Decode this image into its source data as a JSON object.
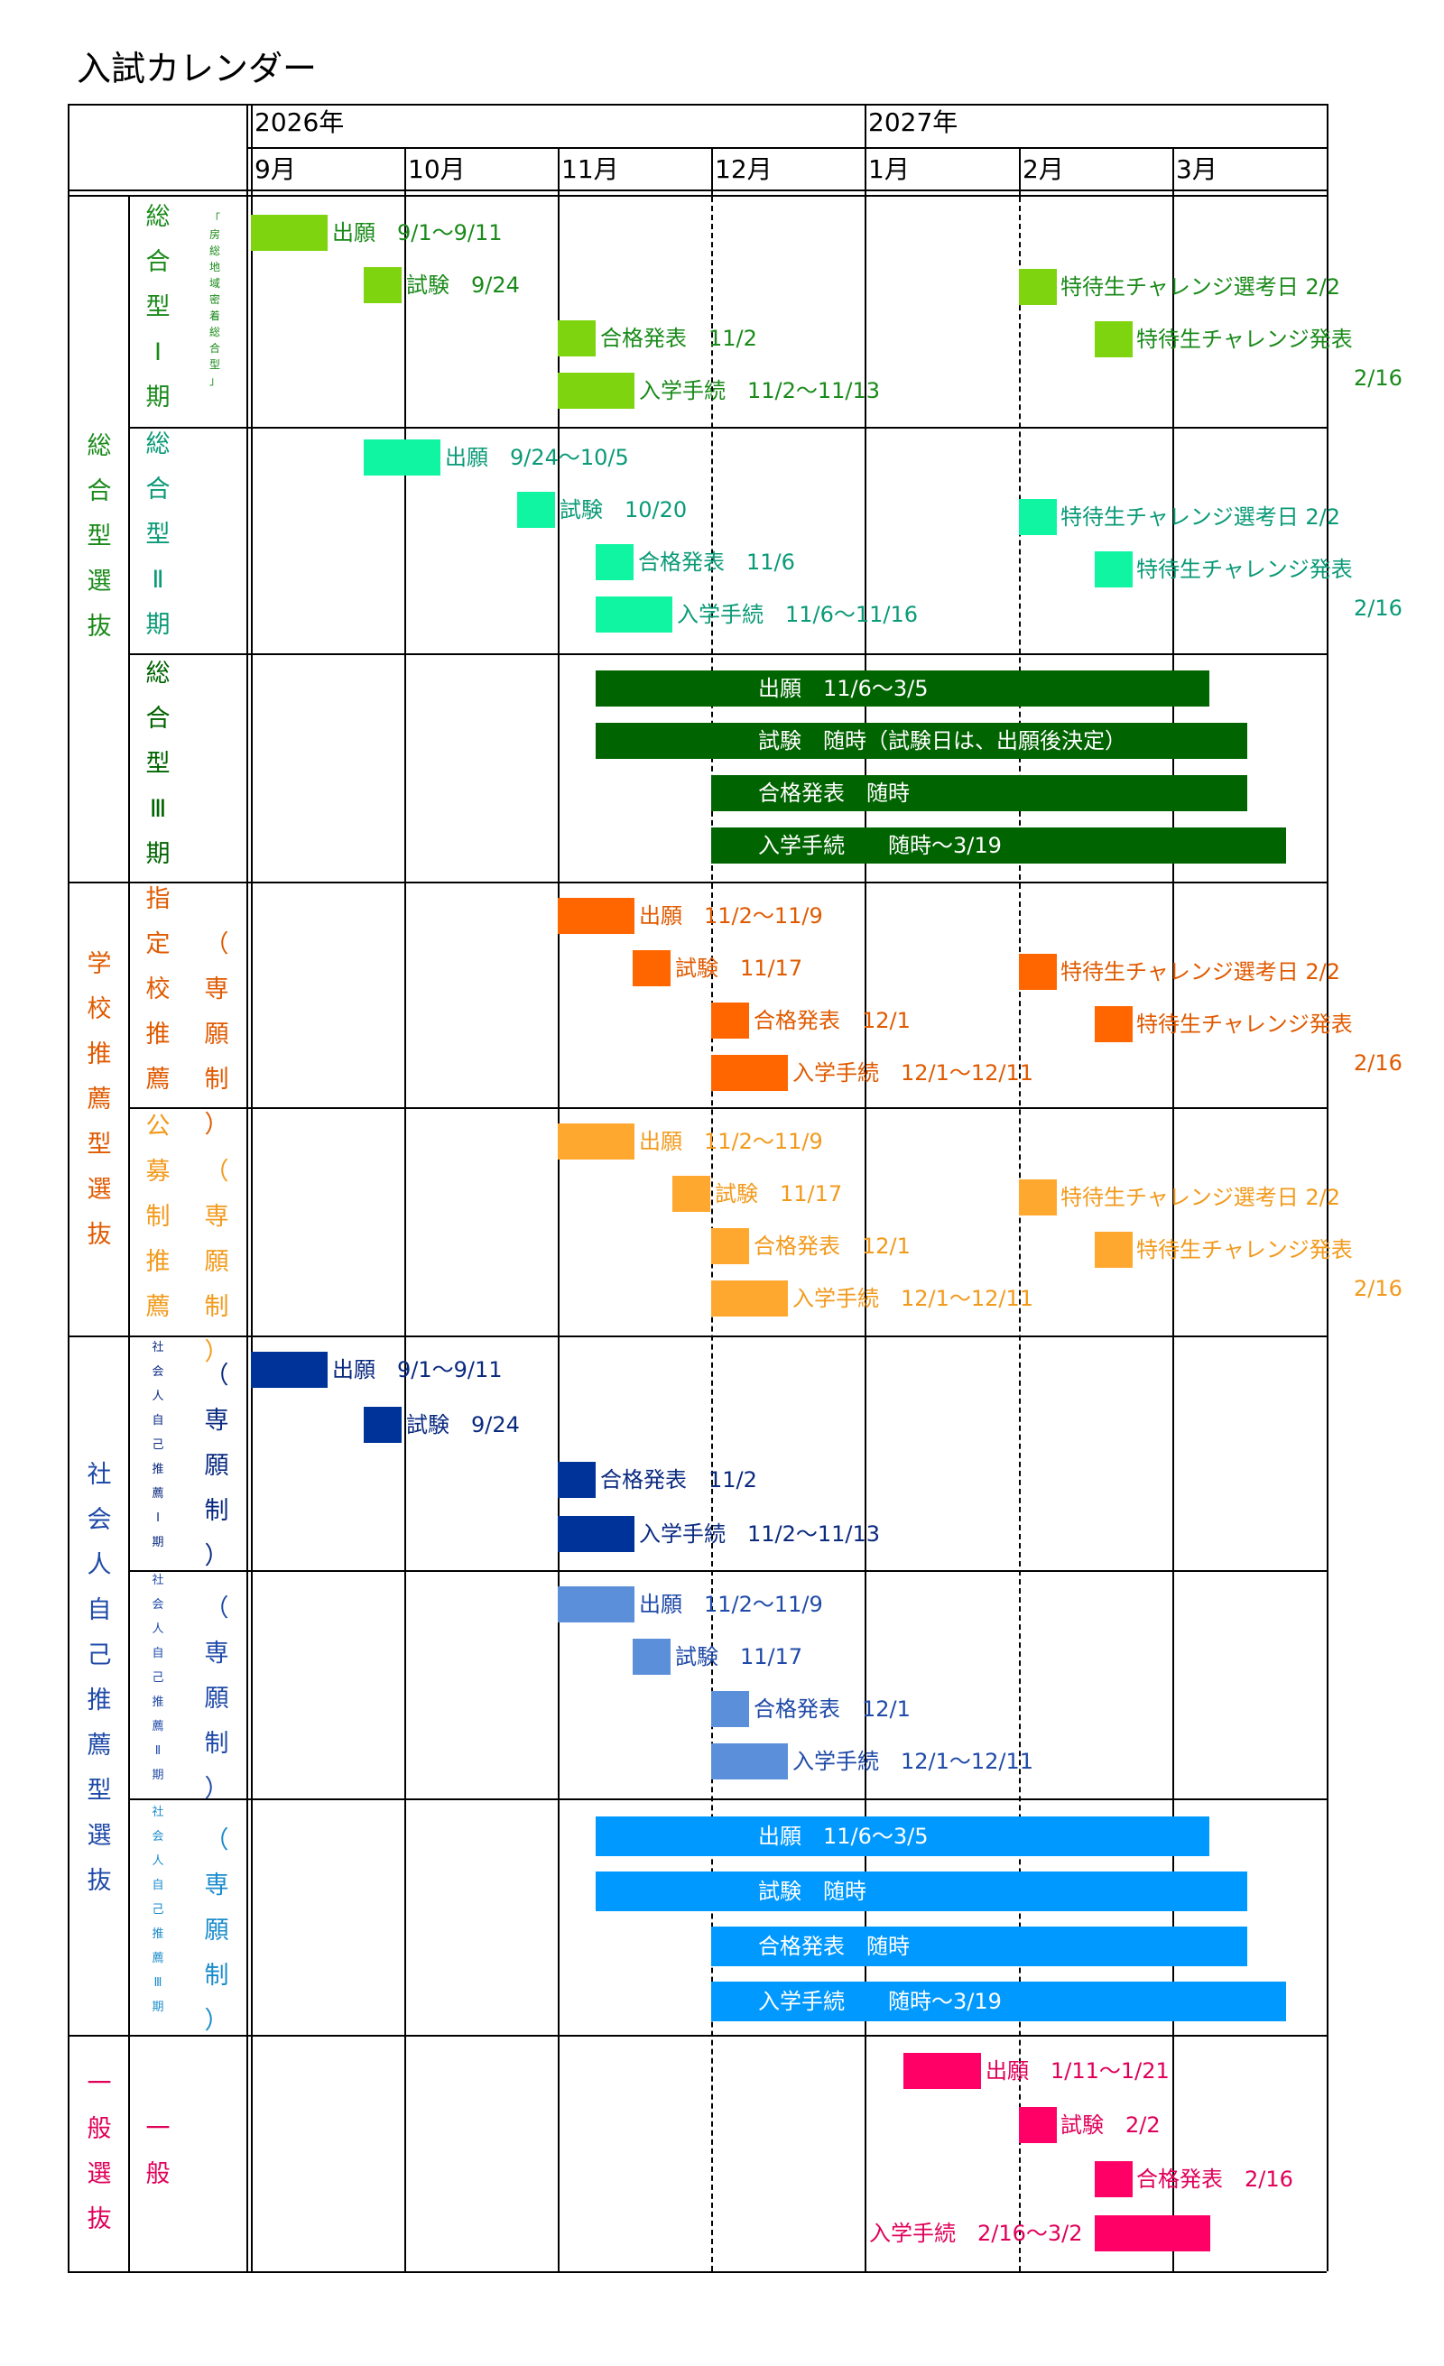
{
  "title": "入試カレンダー",
  "header": {
    "years": [
      "2026年",
      "2027年"
    ],
    "months": [
      "9月",
      "10月",
      "11月",
      "12月",
      "1月",
      "2月",
      "3月"
    ]
  },
  "colors": {
    "sogo1": "#7ed40e",
    "sogo2": "#10f5a2",
    "sogo3": "#006400",
    "shitei": "#ff6600",
    "kobo": "#ffa830",
    "shakai1": "#003399",
    "shakai2": "#5b8fd9",
    "shakai3": "#0099ff",
    "ippan": "#ff0066",
    "label_sogo1": "#1a8a1a",
    "label_sogo2": "#0a9a77",
    "label_sogo3": "#006400",
    "label_shitei": "#e05a00",
    "label_kobo": "#f29a1c",
    "label_shakai1": "#0a2a80",
    "label_shakai2": "#1f4aa8",
    "label_shakai3": "#1a8ccc",
    "label_ippan": "#e0005a"
  },
  "categories": {
    "sogo": "総合型選抜",
    "gakko": "学校推薦型選抜",
    "shakai": "社会人自己推薦型選抜",
    "ippan": "一般選抜"
  },
  "rows": {
    "sogo1": {
      "name": "総合型Ⅰ期",
      "note": "「房総地域密着総合型」"
    },
    "sogo2": {
      "name": "総合型Ⅱ期"
    },
    "sogo3": {
      "name": "総合型Ⅲ期"
    },
    "shitei": {
      "name": "指定校推薦",
      "note": "（専願制）"
    },
    "kobo": {
      "name": "公募制推薦",
      "note": "（専願制）"
    },
    "shakai1": {
      "name": "社会人自己推薦Ⅰ期",
      "note": "（専願制）"
    },
    "shakai2": {
      "name": "社会人自己推薦Ⅱ期",
      "note": "（専願制）"
    },
    "shakai3": {
      "name": "社会人自己推薦Ⅲ期",
      "note": "（専願制）"
    },
    "ippan": {
      "name": "一般"
    }
  },
  "events": {
    "sogo1": [
      "出願　9/1～9/11",
      "試験　9/24",
      "合格発表　11/2",
      "入学手続　11/2～11/13",
      "特待生チャレンジ選考日 2/2",
      "特待生チャレンジ発表",
      "2/16"
    ],
    "sogo2": [
      "出願　9/24～10/5",
      "試験　10/20",
      "合格発表　11/6",
      "入学手続　11/6～11/16",
      "特待生チャレンジ選考日 2/2",
      "特待生チャレンジ発表",
      "2/16"
    ],
    "sogo3": [
      "出願　11/6～3/5",
      "試験　随時（試験日は、出願後決定）",
      "合格発表　随時",
      "入学手続　　随時～3/19"
    ],
    "shitei": [
      "出願　11/2～11/9",
      "試験　11/17",
      "合格発表　12/1",
      "入学手続　12/1～12/11",
      "特待生チャレンジ選考日 2/2",
      "特待生チャレンジ発表",
      "2/16"
    ],
    "kobo": [
      "出願　11/2～11/9",
      "試験　11/17",
      "合格発表　12/1",
      "入学手続　12/1～12/11",
      "特待生チャレンジ選考日 2/2",
      "特待生チャレンジ発表",
      "2/16"
    ],
    "shakai1": [
      "出願　9/1～9/11",
      "試験　9/24",
      "合格発表　11/2",
      "入学手続　11/2～11/13"
    ],
    "shakai2": [
      "出願　11/2～11/9",
      "試験　11/17",
      "合格発表　12/1",
      "入学手続　12/1～12/11"
    ],
    "shakai3": [
      "出願　11/6～3/5",
      "試験　随時",
      "合格発表　随時",
      "入学手続　　随時～3/19"
    ],
    "ippan": [
      "出願　1/11～1/21",
      "試験　2/2",
      "合格発表　2/16",
      "入学手続　2/16～3/2"
    ]
  }
}
